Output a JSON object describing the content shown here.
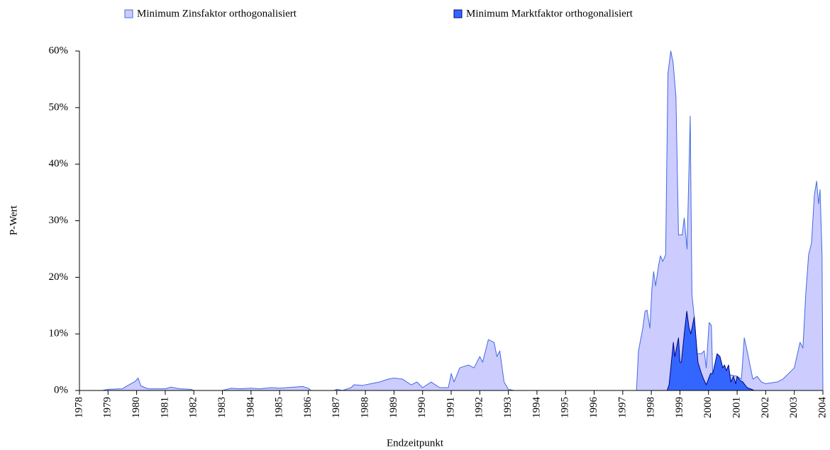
{
  "chart_data": {
    "type": "area",
    "x_label": "Endzeitpunkt",
    "y_label": "P-Wert",
    "xlim": [
      1978,
      2004
    ],
    "xticks": [
      1978,
      1979,
      1980,
      1981,
      1982,
      1983,
      1984,
      1985,
      1986,
      1987,
      1988,
      1989,
      1990,
      1991,
      1992,
      1993,
      1994,
      1995,
      1996,
      1997,
      1998,
      1999,
      2000,
      2001,
      2002,
      2003,
      2004
    ],
    "ylim": [
      0,
      60
    ],
    "yticks": [
      {
        "value": 0,
        "label": "0%"
      },
      {
        "value": 10,
        "label": "10%"
      },
      {
        "value": 20,
        "label": "20%"
      },
      {
        "value": 30,
        "label": "30%"
      },
      {
        "value": 40,
        "label": "40%"
      },
      {
        "value": 50,
        "label": "50%"
      },
      {
        "value": 60,
        "label": "60%"
      }
    ],
    "legend": "top",
    "series": [
      {
        "name": "Minimum Zinsfaktor orthogonalisiert",
        "color": "#ccccff",
        "edge_color": "#4169e1",
        "x": [
          1978.0,
          1978.8,
          1979.0,
          1979.5,
          1979.8,
          1979.95,
          1980.05,
          1980.15,
          1980.4,
          1981.0,
          1981.2,
          1981.5,
          1981.9,
          1982.0,
          1983.0,
          1983.3,
          1983.6,
          1984.0,
          1984.3,
          1984.7,
          1985.0,
          1985.5,
          1985.8,
          1986.0,
          1986.1,
          1986.9,
          1987.0,
          1987.2,
          1987.5,
          1987.6,
          1987.9,
          1988.2,
          1988.5,
          1988.8,
          1989.0,
          1989.3,
          1989.6,
          1989.8,
          1990.0,
          1990.3,
          1990.6,
          1990.9,
          1991.0,
          1991.1,
          1991.3,
          1991.6,
          1991.8,
          1992.0,
          1992.1,
          1992.3,
          1992.5,
          1992.6,
          1992.7,
          1992.85,
          1993.0,
          1993.2,
          1997.48,
          1997.55,
          1997.7,
          1997.78,
          1997.85,
          1997.95,
          1998.02,
          1998.08,
          1998.15,
          1998.25,
          1998.32,
          1998.4,
          1998.5,
          1998.58,
          1998.68,
          1998.76,
          1998.86,
          1998.95,
          1999.08,
          1999.15,
          1999.25,
          1999.36,
          1999.42,
          1999.5,
          1999.6,
          1999.75,
          1999.85,
          1999.92,
          2000.02,
          2000.1,
          2000.15,
          2000.5,
          2001.0,
          2001.15,
          2001.25,
          2001.35,
          2001.45,
          2001.55,
          2001.7,
          2001.85,
          2002.0,
          2002.4,
          2002.6,
          2002.8,
          2002.9,
          2003.0,
          2003.2,
          2003.3,
          2003.4,
          2003.5,
          2003.6,
          2003.7,
          2003.78,
          2003.85,
          2003.9,
          2003.97,
          2004.0
        ],
        "values": [
          0,
          0,
          0.2,
          0.3,
          1.2,
          1.6,
          2.2,
          0.8,
          0.3,
          0.3,
          0.6,
          0.3,
          0.2,
          0,
          0,
          0.4,
          0.3,
          0.4,
          0.3,
          0.5,
          0.4,
          0.6,
          0.7,
          0.4,
          0,
          0,
          0.2,
          0,
          0.5,
          1.0,
          0.9,
          1.2,
          1.5,
          2.0,
          2.2,
          2.0,
          1.0,
          1.5,
          0.5,
          1.5,
          0.5,
          0.5,
          3.0,
          1.5,
          4.0,
          4.5,
          4.0,
          6.0,
          5.0,
          9.0,
          8.5,
          6.0,
          7.0,
          1.5,
          0.2,
          0,
          0,
          7,
          11,
          14,
          14.2,
          11,
          18,
          21,
          18.5,
          22,
          23.8,
          22.8,
          24,
          56,
          60,
          58,
          52,
          27.5,
          27.5,
          30.5,
          25,
          48.5,
          17,
          13,
          6.5,
          6.5,
          7,
          4,
          12,
          11.5,
          2,
          3,
          2.5,
          2,
          9.3,
          7,
          4.5,
          2,
          2.5,
          1.5,
          1.2,
          1.5,
          2,
          3,
          3.5,
          4,
          8.5,
          7.5,
          17,
          24,
          26,
          34.5,
          37,
          33,
          35.5,
          24,
          0
        ]
      },
      {
        "name": "Minimum Marktfaktor orthogonalisiert",
        "color": "#3366ff",
        "edge_color": "#000080",
        "x": [
          1998.55,
          1998.62,
          1998.77,
          1998.82,
          1998.95,
          1999.0,
          1999.05,
          1999.15,
          1999.24,
          1999.32,
          1999.38,
          1999.5,
          1999.63,
          1999.75,
          1999.83,
          1999.92,
          2000.07,
          2000.15,
          2000.3,
          2000.4,
          2000.5,
          2000.56,
          2000.62,
          2000.7,
          2000.78,
          2000.87,
          2000.95,
          2001.0,
          2001.1,
          2001.2,
          2001.35,
          2001.6
        ],
        "values": [
          0,
          1,
          8.5,
          6,
          9.3,
          5,
          5,
          10,
          14,
          11,
          10,
          13,
          5,
          3,
          2,
          1,
          3,
          3,
          6.5,
          6,
          4,
          4.5,
          3.5,
          4.5,
          1.5,
          2.5,
          1.2,
          2.5,
          1.8,
          1.5,
          0.5,
          0
        ]
      }
    ]
  }
}
